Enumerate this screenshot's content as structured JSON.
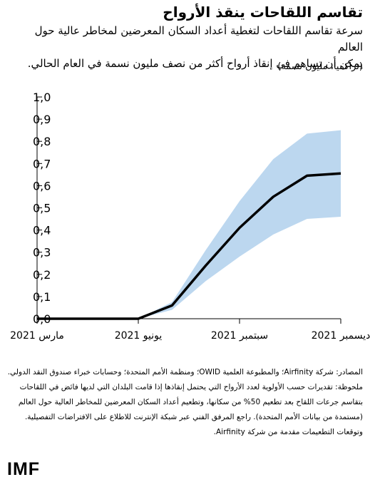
{
  "header": {
    "title": "تقاسم اللقاحات ينقذ الأرواح",
    "subtitle_line1": "سرعة تقاسم اللقاحات لتغطية أعداد السكان المعرضين لمخاطر عالية حول العالم",
    "subtitle_line2": "يمكن أن تساهم في إنقاذ أرواح أكثر من نصف مليون نسمة في العام الحالي.",
    "unit": "(تراكميا، مليون نسمة)"
  },
  "notes": {
    "source": "المصادر: شركة Airfinity؛ والمطبوعة العلمية OWID؛ ومنظمة الأمم المتحدة؛ وحسابات خبراء صندوق النقد الدولي.",
    "note": "ملحوظة: تقديرات حسب الأولوية لعدد الأرواح التي يحتمل إنقاذها إذا قامت البلدان التي لديها فائض في اللقاحات بتقاسم جرعات اللقاح بعد تطعيم 50% من سكانها، وتطعيم أعداد السكان المعرضين للمخاطر العالية حول العالم (مستمدة من بيانات الأمم المتحدة). راجع المرفق الفني عبر شبكة الإنترنت للاطلاع على الافتراضات التفصيلية. وتوقعات التطعيمات مقدمة من شركة Airfinity."
  },
  "logo": "IMF",
  "colors": {
    "line": "#000000",
    "band": "#bcd7ef",
    "axis": "#000000"
  },
  "chart_data": {
    "type": "line",
    "title": "",
    "xlabel": "",
    "ylabel": "",
    "x_ticks": [
      "مارس 2021",
      "يونيو 2021",
      "سبتمبر 2021",
      "ديسمبر 2021"
    ],
    "x_tick_months": [
      "2021-03",
      "2021-06",
      "2021-09",
      "2021-12"
    ],
    "ylim": [
      0,
      1.0
    ],
    "y_ticks": [
      "0,0",
      "0,1",
      "0,2",
      "0,3",
      "0,4",
      "0,5",
      "0,6",
      "0,7",
      "0,8",
      "0,9",
      "1,0"
    ],
    "y_tick_values": [
      0,
      0.1,
      0.2,
      0.3,
      0.4,
      0.5,
      0.6,
      0.7,
      0.8,
      0.9,
      1.0
    ],
    "grid": false,
    "x": [
      "2021-03",
      "2021-04",
      "2021-05",
      "2021-06",
      "2021-07",
      "2021-08",
      "2021-09",
      "2021-10",
      "2021-11",
      "2021-12"
    ],
    "series": [
      {
        "values": [
          0.0,
          0.0,
          0.0,
          0.0,
          0.06,
          0.24,
          0.41,
          0.55,
          0.645,
          0.655
        ]
      }
    ],
    "band": {
      "lower": [
        0.0,
        0.0,
        0.0,
        0.0,
        0.04,
        0.17,
        0.28,
        0.38,
        0.45,
        0.46
      ],
      "upper": [
        0.0,
        0.0,
        0.0,
        0.0,
        0.075,
        0.31,
        0.53,
        0.72,
        0.835,
        0.85
      ]
    }
  }
}
